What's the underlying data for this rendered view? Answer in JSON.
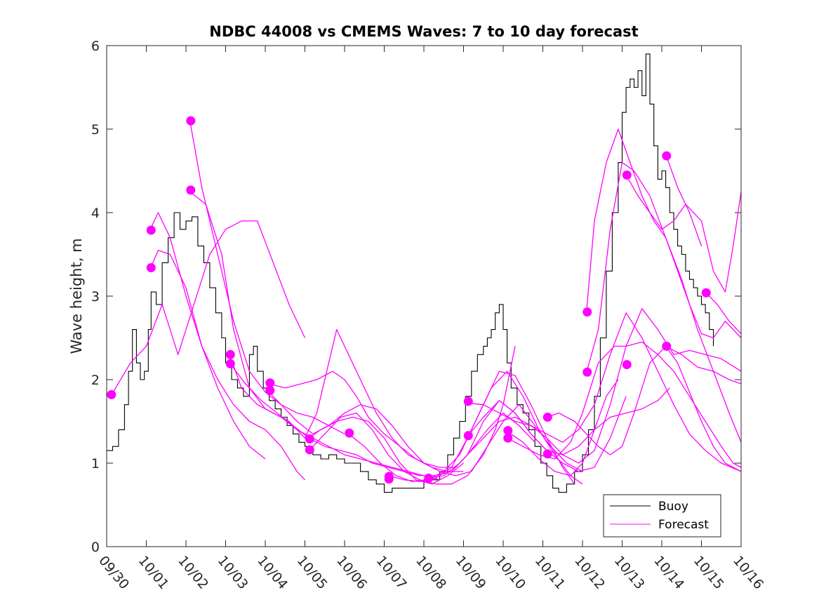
{
  "chart_data": {
    "type": "line",
    "title": "NDBC 44008 vs CMEMS Waves: 7 to 10 day forecast",
    "xlabel": "",
    "ylabel": "Wave height, m",
    "xlim": [
      0,
      16
    ],
    "ylim": [
      0,
      6
    ],
    "yticks": [
      0,
      1,
      2,
      3,
      4,
      5,
      6
    ],
    "xtick_labels": [
      "09/30",
      "10/01",
      "10/02",
      "10/03",
      "10/04",
      "10/05",
      "10/06",
      "10/07",
      "10/08",
      "10/09",
      "10/10",
      "10/11",
      "10/12",
      "10/13",
      "10/14",
      "10/15",
      "10/16"
    ],
    "legend": {
      "position": "bottom-right",
      "entries": [
        "Buoy",
        "Forecast"
      ]
    },
    "colors": {
      "buoy": "#000000",
      "forecast": "#ff00ff"
    },
    "buoy": {
      "name": "Buoy",
      "x": [
        0,
        0.15,
        0.3,
        0.45,
        0.55,
        0.65,
        0.75,
        0.85,
        0.95,
        1.05,
        1.12,
        1.25,
        1.4,
        1.55,
        1.7,
        1.85,
        2.0,
        2.15,
        2.3,
        2.45,
        2.6,
        2.75,
        2.9,
        3.0,
        3.15,
        3.3,
        3.45,
        3.6,
        3.7,
        3.8,
        3.95,
        4.1,
        4.25,
        4.4,
        4.55,
        4.7,
        4.85,
        5.0,
        5.2,
        5.4,
        5.6,
        5.8,
        6.0,
        6.2,
        6.4,
        6.6,
        6.8,
        7.0,
        7.2,
        7.4,
        7.6,
        7.8,
        8.0,
        8.2,
        8.4,
        8.6,
        8.75,
        8.9,
        9.05,
        9.2,
        9.35,
        9.5,
        9.6,
        9.7,
        9.8,
        9.9,
        10.0,
        10.1,
        10.2,
        10.35,
        10.5,
        10.65,
        10.8,
        10.95,
        11.1,
        11.25,
        11.4,
        11.6,
        11.8,
        12.0,
        12.15,
        12.3,
        12.45,
        12.6,
        12.75,
        12.9,
        13.0,
        13.1,
        13.2,
        13.3,
        13.4,
        13.5,
        13.6,
        13.7,
        13.8,
        13.9,
        14.0,
        14.1,
        14.2,
        14.3,
        14.4,
        14.5,
        14.6,
        14.7,
        14.8,
        14.9,
        15.0,
        15.1,
        15.2,
        15.3
      ],
      "y": [
        1.15,
        1.2,
        1.4,
        1.7,
        2.1,
        2.6,
        2.2,
        2.0,
        2.1,
        2.6,
        3.05,
        2.9,
        3.4,
        3.7,
        4.0,
        3.8,
        3.9,
        3.95,
        3.6,
        3.4,
        3.1,
        2.8,
        2.5,
        2.2,
        2.0,
        1.9,
        1.8,
        2.3,
        2.4,
        2.1,
        1.9,
        1.75,
        1.65,
        1.55,
        1.45,
        1.35,
        1.25,
        1.2,
        1.1,
        1.05,
        1.1,
        1.05,
        1.0,
        1.0,
        0.9,
        0.8,
        0.75,
        0.65,
        0.7,
        0.7,
        0.7,
        0.7,
        0.8,
        0.8,
        0.9,
        1.1,
        1.3,
        1.5,
        1.8,
        2.1,
        2.3,
        2.4,
        2.5,
        2.6,
        2.8,
        2.9,
        2.6,
        2.2,
        1.9,
        1.7,
        1.6,
        1.4,
        1.2,
        1.0,
        0.85,
        0.7,
        0.65,
        0.75,
        0.9,
        1.1,
        1.4,
        1.8,
        2.5,
        3.3,
        4.0,
        4.6,
        5.2,
        5.5,
        5.6,
        5.5,
        5.7,
        5.4,
        5.9,
        5.3,
        4.8,
        4.4,
        4.5,
        4.3,
        4.0,
        3.8,
        3.6,
        3.5,
        3.3,
        3.2,
        3.1,
        3.0,
        2.9,
        2.8,
        2.6,
        2.4
      ]
    },
    "forecast": {
      "name": "Forecast",
      "series": [
        {
          "x": [
            0.1,
            0.6,
            1.0,
            1.4,
            1.8,
            2.2,
            2.6,
            3.0,
            3.4,
            3.8,
            4.2,
            4.6,
            5.0
          ],
          "y": [
            1.8,
            2.2,
            2.4,
            2.9,
            2.3,
            2.9,
            3.5,
            3.8,
            3.9,
            3.9,
            3.4,
            2.9,
            2.5
          ]
        },
        {
          "x": [
            1.1,
            1.3,
            1.6,
            2.0,
            2.4,
            2.8,
            3.2,
            3.6,
            4.0
          ],
          "y": [
            3.33,
            3.55,
            3.5,
            3.1,
            2.4,
            1.9,
            1.5,
            1.2,
            1.05
          ]
        },
        {
          "x": [
            1.1,
            1.3,
            1.6,
            2.0,
            2.4,
            2.8,
            3.2,
            3.6,
            4.0,
            4.4,
            4.8,
            5.0
          ],
          "y": [
            3.8,
            4.0,
            3.7,
            3.0,
            2.4,
            2.0,
            1.7,
            1.5,
            1.4,
            1.2,
            0.9,
            0.8
          ]
        },
        {
          "x": [
            2.1,
            2.4,
            2.8,
            3.2,
            3.6,
            4.0,
            4.4,
            4.8,
            5.2,
            5.6,
            6.0
          ],
          "y": [
            5.1,
            4.3,
            3.5,
            2.7,
            2.1,
            1.85,
            1.7,
            1.6,
            1.55,
            1.45,
            1.35
          ]
        },
        {
          "x": [
            2.1,
            2.5,
            2.9,
            3.2,
            3.6,
            4.0,
            4.4,
            4.8,
            5.2,
            5.6,
            6.0,
            6.4,
            6.8,
            7.2,
            7.6,
            8.0,
            8.4
          ],
          "y": [
            4.25,
            4.1,
            3.5,
            2.6,
            1.9,
            1.65,
            1.55,
            1.4,
            1.3,
            1.2,
            1.1,
            1.05,
            1.0,
            0.95,
            0.9,
            0.85,
            0.8
          ]
        },
        {
          "x": [
            3.1,
            3.4,
            3.8,
            4.2,
            4.6,
            5.0,
            5.3,
            5.6,
            5.8,
            6.0,
            6.4,
            6.8,
            7.2,
            7.6,
            8.0,
            8.4,
            8.8,
            9.1,
            9.6,
            10.0,
            10.4,
            10.8
          ],
          "y": [
            2.3,
            1.9,
            1.7,
            1.6,
            1.5,
            1.3,
            1.6,
            2.2,
            2.6,
            2.4,
            2.0,
            1.6,
            1.3,
            1.1,
            1.0,
            0.95,
            0.95,
            1.1,
            1.4,
            1.6,
            1.45,
            1.25
          ]
        },
        {
          "x": [
            3.1,
            3.5,
            3.9,
            4.3,
            4.7,
            5.1,
            5.5,
            5.9,
            6.3,
            6.7,
            7.1,
            7.5,
            7.9,
            8.3,
            8.7,
            9.1,
            9.5,
            9.9,
            10.3,
            10.7,
            11.1,
            11.5,
            11.9,
            12.3,
            12.7,
            13.1,
            13.5,
            13.9,
            14.2
          ],
          "y": [
            2.2,
            1.95,
            1.75,
            1.6,
            1.45,
            1.3,
            1.2,
            1.15,
            1.1,
            1.0,
            0.95,
            0.9,
            0.85,
            0.85,
            0.9,
            1.1,
            1.5,
            1.75,
            1.6,
            1.35,
            1.15,
            1.1,
            1.2,
            1.4,
            1.55,
            1.6,
            1.65,
            1.75,
            1.9
          ]
        },
        {
          "x": [
            4.1,
            4.5,
            4.9,
            5.3,
            5.7,
            6.0,
            6.3,
            6.6,
            7.0,
            7.4,
            7.8,
            8.2,
            8.6,
            9.0
          ],
          "y": [
            1.95,
            1.9,
            1.95,
            2.0,
            2.1,
            2.0,
            1.8,
            1.55,
            1.35,
            1.2,
            1.05,
            0.95,
            0.9,
            0.9
          ]
        },
        {
          "x": [
            4.1,
            4.4,
            4.8,
            5.2,
            5.6,
            6.0,
            6.4,
            6.8,
            7.2,
            7.6,
            8.0,
            8.4,
            8.8,
            9.2,
            9.6,
            10.0,
            10.4,
            10.8,
            11.2,
            11.6,
            12.0
          ],
          "y": [
            1.85,
            1.7,
            1.5,
            1.35,
            1.45,
            1.6,
            1.7,
            1.65,
            1.45,
            1.2,
            1.0,
            0.9,
            0.85,
            0.9,
            1.2,
            1.5,
            1.7,
            1.45,
            1.2,
            1.0,
            0.9
          ]
        },
        {
          "x": [
            5.1,
            5.4,
            5.8,
            6.2,
            6.6,
            7.0,
            7.4,
            7.8,
            8.2,
            8.6,
            9.0
          ],
          "y": [
            1.3,
            1.4,
            1.5,
            1.55,
            1.5,
            1.3,
            1.0,
            0.8,
            0.75,
            0.85,
            1.0
          ]
        },
        {
          "x": [
            5.1,
            5.5,
            5.9,
            6.3,
            6.7,
            7.1,
            7.5,
            7.9,
            8.3,
            8.7,
            9.1,
            9.5,
            9.8,
            10.0,
            10.3
          ],
          "y": [
            1.15,
            1.35,
            1.55,
            1.6,
            1.4,
            1.1,
            0.9,
            0.8,
            0.75,
            0.75,
            0.85,
            1.1,
            1.4,
            1.7,
            2.4
          ]
        },
        {
          "x": [
            6.1,
            6.5,
            6.9,
            7.3,
            7.7,
            8.1,
            8.5,
            8.9,
            9.3,
            9.7,
            10.1,
            10.5,
            10.9,
            11.3,
            11.7,
            12.0
          ],
          "y": [
            1.35,
            1.2,
            1.0,
            0.85,
            0.78,
            0.8,
            0.9,
            1.1,
            1.5,
            1.9,
            2.1,
            1.8,
            1.4,
            1.1,
            0.85,
            0.75
          ]
        },
        {
          "x": [
            7.1,
            7.5,
            7.9,
            8.3,
            8.7,
            9.1,
            9.5,
            9.9,
            10.3,
            10.7,
            11.1,
            11.5,
            11.8
          ],
          "y": [
            0.85,
            0.8,
            0.78,
            0.82,
            0.95,
            1.3,
            1.7,
            2.1,
            2.05,
            1.7,
            1.3,
            0.95,
            0.75
          ]
        },
        {
          "x": [
            8.1,
            8.5,
            8.9,
            9.1,
            9.5,
            9.9,
            10.3,
            10.7,
            11.1,
            11.5,
            11.9,
            12.3,
            12.7,
            13.1,
            13.5,
            13.9,
            14.3,
            14.7,
            15.1,
            15.5,
            16.0
          ],
          "y": [
            0.82,
            0.85,
            1.0,
            1.1,
            1.3,
            1.5,
            1.55,
            1.45,
            1.3,
            1.1,
            1.0,
            1.15,
            1.7,
            2.4,
            2.85,
            2.6,
            2.3,
            2.35,
            2.3,
            2.25,
            2.1
          ]
        },
        {
          "x": [
            9.1,
            9.5,
            9.9,
            10.3,
            10.7,
            11.1,
            11.5,
            11.9,
            12.3,
            12.7,
            13.1,
            13.5,
            13.9,
            14.3,
            14.7,
            15.1,
            15.5,
            16.0
          ],
          "y": [
            1.72,
            1.7,
            1.6,
            1.5,
            1.45,
            1.35,
            1.25,
            1.4,
            1.7,
            2.3,
            2.8,
            2.5,
            2.1,
            1.7,
            1.35,
            1.15,
            1.0,
            0.9
          ]
        },
        {
          "x": [
            9.1,
            9.5,
            9.9,
            10.3,
            10.7,
            11.1,
            11.5,
            11.9,
            12.3,
            12.7,
            13.1
          ],
          "y": [
            1.32,
            1.55,
            1.75,
            1.6,
            1.35,
            1.15,
            1.0,
            0.9,
            0.95,
            1.3,
            1.8
          ]
        },
        {
          "x": [
            10.1,
            10.5,
            10.9,
            11.3,
            11.7,
            12.0,
            12.3,
            12.6,
            12.9
          ],
          "y": [
            1.38,
            1.25,
            1.05,
            0.9,
            0.85,
            1.0,
            1.4,
            1.8,
            2.0
          ]
        },
        {
          "x": [
            10.1,
            10.5,
            10.9,
            11.3,
            11.7,
            12.0,
            12.4,
            12.8,
            13.1,
            13.5,
            13.9,
            14.3,
            14.7,
            15.1,
            15.5,
            15.8,
            16.0
          ],
          "y": [
            1.3,
            1.2,
            1.1,
            1.05,
            1.25,
            1.6,
            2.2,
            2.4,
            2.4,
            2.45,
            2.3,
            2.1,
            1.8,
            1.5,
            1.2,
            1.0,
            0.95
          ]
        },
        {
          "x": [
            11.1,
            11.4,
            11.8,
            12.1,
            12.4,
            12.7,
            13.0,
            13.3,
            13.7,
            14.1,
            14.5,
            14.9,
            15.3,
            15.7,
            16.0
          ],
          "y": [
            1.55,
            1.6,
            1.5,
            1.35,
            1.2,
            1.1,
            1.2,
            1.6,
            2.2,
            2.4,
            2.3,
            2.15,
            2.1,
            2.0,
            1.95
          ]
        },
        {
          "x": [
            12.1,
            12.3,
            12.6,
            12.9,
            13.2,
            13.5,
            13.8,
            14.1,
            14.4,
            14.7,
            15.0,
            15.3,
            15.6,
            16.0
          ],
          "y": [
            2.8,
            3.9,
            4.6,
            5.0,
            4.6,
            4.2,
            3.9,
            3.7,
            3.3,
            2.9,
            2.55,
            2.5,
            2.7,
            2.5
          ]
        },
        {
          "x": [
            12.1,
            12.4,
            12.7,
            13.0,
            13.3,
            13.7,
            14.1,
            14.5,
            14.9,
            15.3,
            15.7,
            16.0
          ],
          "y": [
            2.08,
            2.6,
            3.8,
            4.6,
            4.5,
            4.2,
            3.7,
            3.2,
            2.6,
            2.1,
            1.6,
            1.25
          ]
        },
        {
          "x": [
            13.1,
            13.4,
            13.7,
            14.0,
            14.3,
            14.6,
            15.0,
            15.3,
            15.6,
            15.8,
            16.0
          ],
          "y": [
            4.45,
            4.2,
            4.0,
            3.8,
            3.9,
            4.1,
            3.9,
            3.3,
            3.05,
            3.6,
            4.25
          ]
        },
        {
          "x": [
            14.1,
            14.4,
            14.7,
            15.0
          ],
          "y": [
            4.7,
            4.3,
            4.0,
            3.6
          ]
        },
        {
          "x": [
            14.1,
            14.4,
            14.7,
            15.0,
            15.3,
            15.6,
            16.0
          ],
          "y": [
            2.4,
            2.2,
            1.85,
            1.5,
            1.2,
            1.0,
            0.9
          ]
        },
        {
          "x": [
            15.1,
            15.4,
            15.7,
            16.0
          ],
          "y": [
            3.05,
            2.9,
            2.7,
            2.55
          ]
        }
      ],
      "markers": [
        {
          "x": 0.12,
          "y": 1.82
        },
        {
          "x": 1.12,
          "y": 3.34
        },
        {
          "x": 1.12,
          "y": 3.79
        },
        {
          "x": 2.12,
          "y": 5.1
        },
        {
          "x": 2.12,
          "y": 4.27
        },
        {
          "x": 3.12,
          "y": 2.3
        },
        {
          "x": 3.12,
          "y": 2.19
        },
        {
          "x": 4.12,
          "y": 1.96
        },
        {
          "x": 4.12,
          "y": 1.87
        },
        {
          "x": 5.12,
          "y": 1.29
        },
        {
          "x": 5.12,
          "y": 1.16
        },
        {
          "x": 6.12,
          "y": 1.36
        },
        {
          "x": 7.12,
          "y": 0.84
        },
        {
          "x": 7.12,
          "y": 0.81
        },
        {
          "x": 8.12,
          "y": 0.82
        },
        {
          "x": 9.12,
          "y": 1.74
        },
        {
          "x": 9.12,
          "y": 1.33
        },
        {
          "x": 10.12,
          "y": 1.39
        },
        {
          "x": 10.12,
          "y": 1.3
        },
        {
          "x": 11.12,
          "y": 1.55
        },
        {
          "x": 11.12,
          "y": 1.11
        },
        {
          "x": 12.12,
          "y": 2.81
        },
        {
          "x": 12.12,
          "y": 2.09
        },
        {
          "x": 13.12,
          "y": 4.45
        },
        {
          "x": 13.12,
          "y": 2.18
        },
        {
          "x": 14.12,
          "y": 4.68
        },
        {
          "x": 14.12,
          "y": 2.4
        },
        {
          "x": 15.12,
          "y": 3.04
        }
      ]
    }
  }
}
